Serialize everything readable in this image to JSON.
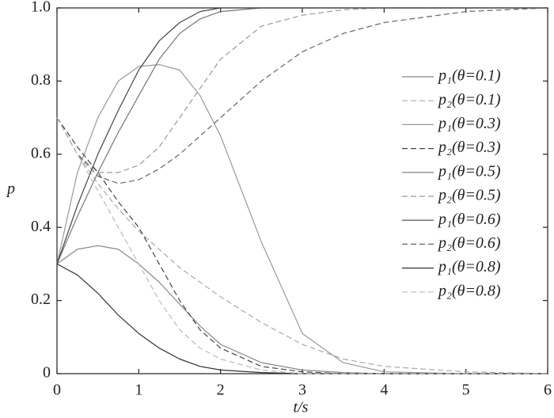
{
  "chart_data": {
    "type": "line",
    "x_label": "t/s",
    "y_label": "p",
    "x": [
      0,
      0.25,
      0.5,
      0.75,
      1,
      1.25,
      1.5,
      1.75,
      2,
      2.5,
      3,
      3.5,
      4,
      5,
      6
    ],
    "xlim": [
      0,
      6
    ],
    "xticks": [
      0,
      1,
      2,
      3,
      4,
      5,
      6
    ],
    "ylim": [
      0,
      1
    ],
    "yticks": [
      0,
      0.2,
      0.4,
      0.6,
      0.8,
      {
        "value": 1,
        "label": "1.0"
      }
    ],
    "legend": "right",
    "series": [
      {
        "name": "p₁(θ=0.1)",
        "color": "#888888",
        "dashed": false,
        "values": [
          0.3,
          0.34,
          0.35,
          0.34,
          0.3,
          0.25,
          0.19,
          0.13,
          0.08,
          0.03,
          0.01,
          0.003,
          0,
          0,
          0
        ]
      },
      {
        "name": "p₂(θ=0.1)",
        "color": "#aaaaaa",
        "dashed": true,
        "values": [
          0.7,
          0.6,
          0.52,
          0.45,
          0.39,
          0.34,
          0.29,
          0.25,
          0.21,
          0.14,
          0.08,
          0.04,
          0.02,
          0.005,
          0
        ]
      },
      {
        "name": "p₁(θ=0.3)",
        "color": "#999999",
        "dashed": false,
        "values": [
          0.3,
          0.55,
          0.7,
          0.8,
          0.84,
          0.845,
          0.83,
          0.76,
          0.65,
          0.36,
          0.11,
          0.03,
          0.005,
          0,
          0
        ]
      },
      {
        "name": "p₂(θ=0.3)",
        "color": "#444444",
        "dashed": true,
        "values": [
          0.7,
          0.62,
          0.55,
          0.47,
          0.4,
          0.3,
          0.2,
          0.12,
          0.07,
          0.02,
          0.005,
          0,
          0,
          0,
          0
        ]
      },
      {
        "name": "p₁(θ=0.5)",
        "color": "#777777",
        "dashed": false,
        "values": [
          0.3,
          0.43,
          0.55,
          0.66,
          0.76,
          0.86,
          0.93,
          0.97,
          0.99,
          1,
          1,
          1,
          1,
          1,
          1
        ]
      },
      {
        "name": "p₂(θ=0.5)",
        "color": "#999999",
        "dashed": true,
        "values": [
          0.7,
          0.6,
          0.55,
          0.55,
          0.57,
          0.62,
          0.7,
          0.78,
          0.86,
          0.95,
          0.98,
          0.995,
          1,
          1,
          1
        ]
      },
      {
        "name": "p₁(θ=0.6)",
        "color": "#444444",
        "dashed": false,
        "values": [
          0.3,
          0.46,
          0.6,
          0.72,
          0.83,
          0.91,
          0.96,
          0.99,
          1,
          1,
          1,
          1,
          1,
          1,
          1
        ]
      },
      {
        "name": "p₂(θ=0.6)",
        "color": "#666666",
        "dashed": true,
        "values": [
          0.7,
          0.6,
          0.54,
          0.52,
          0.53,
          0.56,
          0.6,
          0.65,
          0.7,
          0.8,
          0.88,
          0.93,
          0.96,
          0.99,
          1
        ]
      },
      {
        "name": "p₁(θ=0.8)",
        "color": "#333333",
        "dashed": false,
        "values": [
          0.3,
          0.27,
          0.22,
          0.16,
          0.11,
          0.07,
          0.04,
          0.02,
          0.01,
          0.003,
          0,
          0,
          0,
          0,
          0
        ]
      },
      {
        "name": "p₂(θ=0.8)",
        "color": "#bbbbbb",
        "dashed": true,
        "values": [
          0.7,
          0.6,
          0.5,
          0.4,
          0.3,
          0.2,
          0.12,
          0.07,
          0.04,
          0.01,
          0,
          0,
          0,
          0,
          0
        ]
      }
    ]
  }
}
